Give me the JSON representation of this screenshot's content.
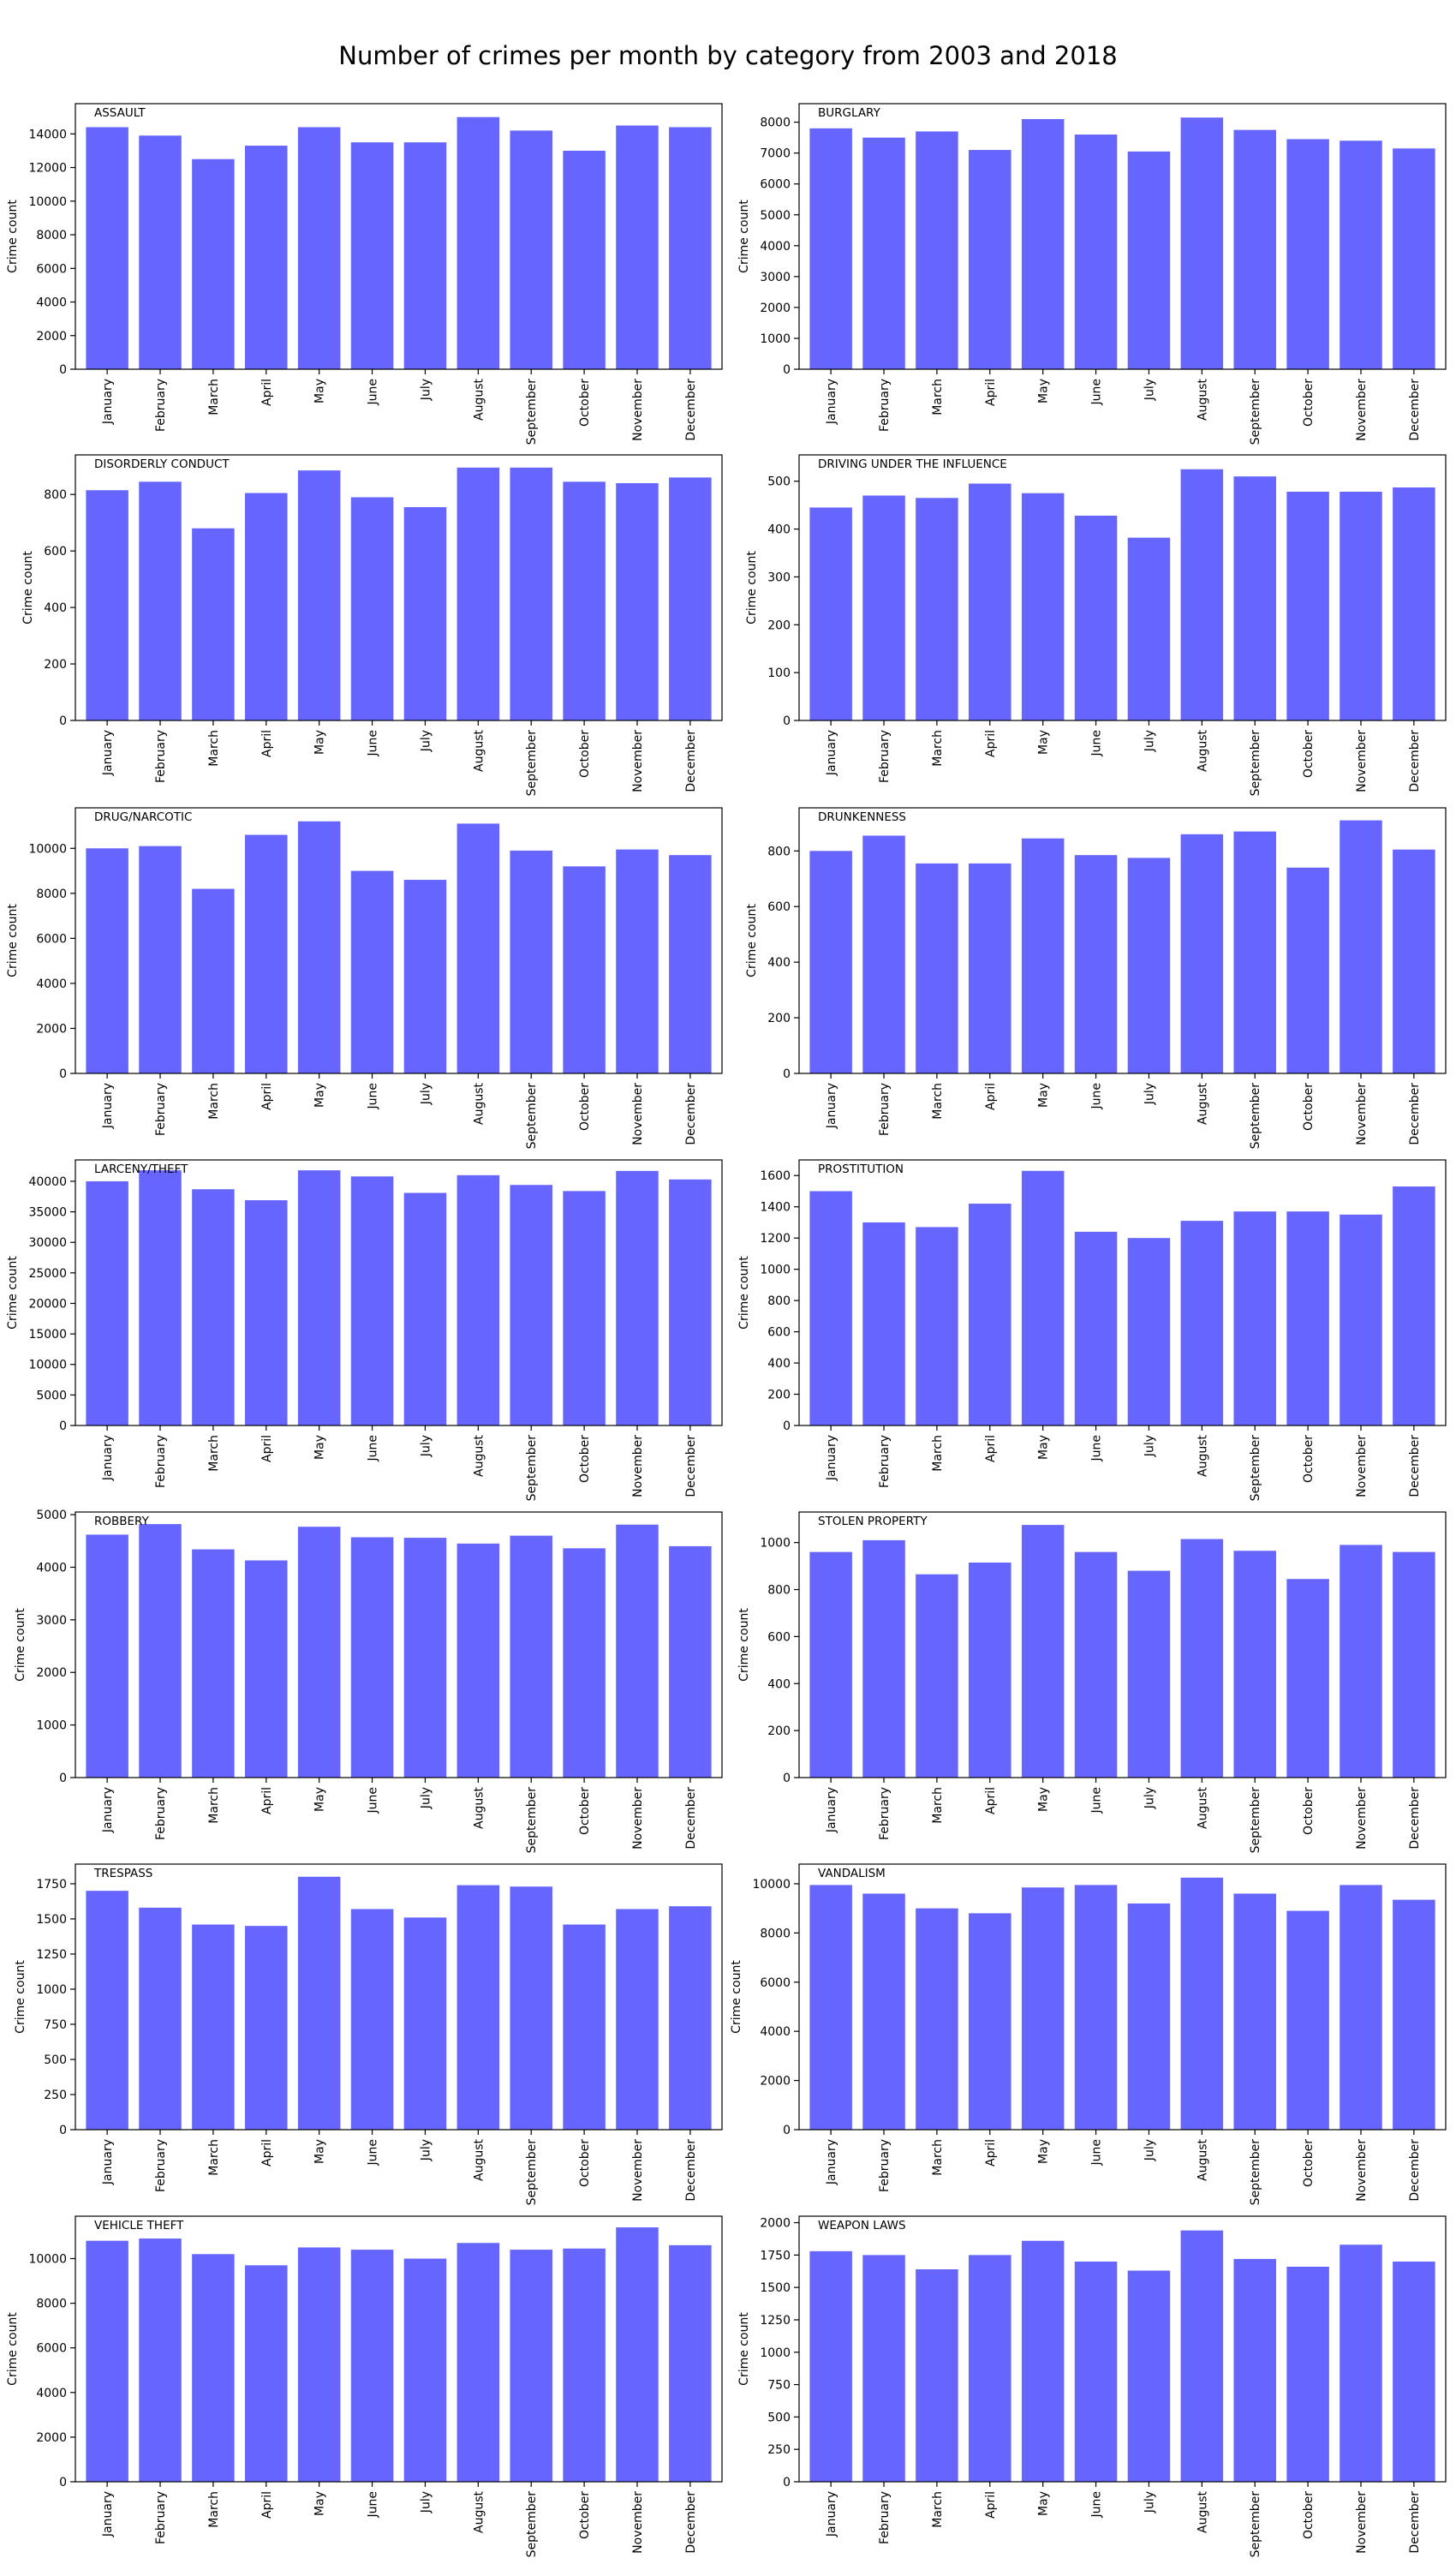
{
  "figure": {
    "title": "Number of crimes per month by category from 2003 and 2018",
    "bar_color": "#6666ff",
    "ylabel": "Crime count"
  },
  "chart_data": [
    {
      "type": "bar",
      "title": "ASSAULT",
      "ylabel": "Crime count",
      "ylim": [
        0,
        15800
      ],
      "yticks": [
        0,
        2000,
        4000,
        6000,
        8000,
        10000,
        12000,
        14000
      ],
      "categories": [
        "January",
        "February",
        "March",
        "April",
        "May",
        "June",
        "July",
        "August",
        "September",
        "October",
        "November",
        "December"
      ],
      "values": [
        14400,
        13900,
        12500,
        13300,
        14400,
        13500,
        13500,
        15000,
        14200,
        13000,
        14500,
        14400
      ]
    },
    {
      "type": "bar",
      "title": "BURGLARY",
      "ylabel": "Crime count",
      "ylim": [
        0,
        8600
      ],
      "yticks": [
        0,
        1000,
        2000,
        3000,
        4000,
        5000,
        6000,
        7000,
        8000
      ],
      "categories": [
        "January",
        "February",
        "March",
        "April",
        "May",
        "June",
        "July",
        "August",
        "September",
        "October",
        "November",
        "December"
      ],
      "values": [
        7800,
        7500,
        7700,
        7100,
        8100,
        7600,
        7050,
        8150,
        7750,
        7450,
        7400,
        7150
      ]
    },
    {
      "type": "bar",
      "title": "DISORDERLY CONDUCT",
      "ylabel": "Crime count",
      "ylim": [
        0,
        940
      ],
      "yticks": [
        0,
        200,
        400,
        600,
        800
      ],
      "categories": [
        "January",
        "February",
        "March",
        "April",
        "May",
        "June",
        "July",
        "August",
        "September",
        "October",
        "November",
        "December"
      ],
      "values": [
        815,
        845,
        680,
        805,
        885,
        790,
        755,
        895,
        895,
        845,
        840,
        860
      ]
    },
    {
      "type": "bar",
      "title": "DRIVING UNDER THE INFLUENCE",
      "ylabel": "Crime count",
      "ylim": [
        0,
        555
      ],
      "yticks": [
        0,
        100,
        200,
        300,
        400,
        500
      ],
      "categories": [
        "January",
        "February",
        "March",
        "April",
        "May",
        "June",
        "July",
        "August",
        "September",
        "October",
        "November",
        "December"
      ],
      "values": [
        445,
        470,
        465,
        495,
        475,
        428,
        382,
        525,
        510,
        478,
        478,
        487
      ]
    },
    {
      "type": "bar",
      "title": "DRUG/NARCOTIC",
      "ylabel": "Crime count",
      "ylim": [
        0,
        11800
      ],
      "yticks": [
        0,
        2000,
        4000,
        6000,
        8000,
        10000
      ],
      "categories": [
        "January",
        "February",
        "March",
        "April",
        "May",
        "June",
        "July",
        "August",
        "September",
        "October",
        "November",
        "December"
      ],
      "values": [
        10000,
        10100,
        8200,
        10600,
        11200,
        9000,
        8600,
        11100,
        9900,
        9200,
        9950,
        9700
      ]
    },
    {
      "type": "bar",
      "title": "DRUNKENNESS",
      "ylabel": "Crime count",
      "ylim": [
        0,
        955
      ],
      "yticks": [
        0,
        200,
        400,
        600,
        800
      ],
      "categories": [
        "January",
        "February",
        "March",
        "April",
        "May",
        "June",
        "July",
        "August",
        "September",
        "October",
        "November",
        "December"
      ],
      "values": [
        800,
        855,
        755,
        755,
        845,
        785,
        775,
        860,
        870,
        740,
        910,
        805
      ]
    },
    {
      "type": "bar",
      "title": "LARCENY/THEFT",
      "ylabel": "Crime count",
      "ylim": [
        0,
        43500
      ],
      "yticks": [
        0,
        5000,
        10000,
        15000,
        20000,
        25000,
        30000,
        35000,
        40000
      ],
      "categories": [
        "January",
        "February",
        "March",
        "April",
        "May",
        "June",
        "July",
        "August",
        "September",
        "October",
        "November",
        "December"
      ],
      "values": [
        40000,
        41800,
        38700,
        36900,
        41800,
        40800,
        38100,
        41000,
        39400,
        38400,
        41700,
        40300
      ]
    },
    {
      "type": "bar",
      "title": "PROSTITUTION",
      "ylabel": "Crime count",
      "ylim": [
        0,
        1700
      ],
      "yticks": [
        0,
        200,
        400,
        600,
        800,
        1000,
        1200,
        1400,
        1600
      ],
      "categories": [
        "January",
        "February",
        "March",
        "April",
        "May",
        "June",
        "July",
        "August",
        "September",
        "October",
        "November",
        "December"
      ],
      "values": [
        1500,
        1300,
        1270,
        1420,
        1630,
        1240,
        1200,
        1310,
        1370,
        1370,
        1350,
        1530
      ]
    },
    {
      "type": "bar",
      "title": "ROBBERY",
      "ylabel": "Crime count",
      "ylim": [
        0,
        5050
      ],
      "yticks": [
        0,
        1000,
        2000,
        3000,
        4000,
        5000
      ],
      "categories": [
        "January",
        "February",
        "March",
        "April",
        "May",
        "June",
        "July",
        "August",
        "September",
        "October",
        "November",
        "December"
      ],
      "values": [
        4620,
        4820,
        4340,
        4130,
        4770,
        4570,
        4560,
        4450,
        4600,
        4360,
        4810,
        4400
      ]
    },
    {
      "type": "bar",
      "title": "STOLEN PROPERTY",
      "ylabel": "Crime count",
      "ylim": [
        0,
        1130
      ],
      "yticks": [
        0,
        200,
        400,
        600,
        800,
        1000
      ],
      "categories": [
        "January",
        "February",
        "March",
        "April",
        "May",
        "June",
        "July",
        "August",
        "September",
        "October",
        "November",
        "December"
      ],
      "values": [
        960,
        1010,
        865,
        915,
        1075,
        960,
        880,
        1015,
        965,
        845,
        990,
        960
      ]
    },
    {
      "type": "bar",
      "title": "TRESPASS",
      "ylabel": "Crime count",
      "ylim": [
        0,
        1890
      ],
      "yticks": [
        0,
        250,
        500,
        750,
        1000,
        1250,
        1500,
        1750
      ],
      "categories": [
        "January",
        "February",
        "March",
        "April",
        "May",
        "June",
        "July",
        "August",
        "September",
        "October",
        "November",
        "December"
      ],
      "values": [
        1700,
        1580,
        1460,
        1450,
        1800,
        1570,
        1510,
        1740,
        1730,
        1460,
        1570,
        1590
      ]
    },
    {
      "type": "bar",
      "title": "VANDALISM",
      "ylabel": "Crime count",
      "ylim": [
        0,
        10800
      ],
      "yticks": [
        0,
        2000,
        4000,
        6000,
        8000,
        10000
      ],
      "categories": [
        "January",
        "February",
        "March",
        "April",
        "May",
        "June",
        "July",
        "August",
        "September",
        "October",
        "November",
        "December"
      ],
      "values": [
        9950,
        9600,
        9000,
        8800,
        9850,
        9950,
        9200,
        10250,
        9600,
        8900,
        9950,
        9350
      ]
    },
    {
      "type": "bar",
      "title": "VEHICLE THEFT",
      "ylabel": "Crime count",
      "ylim": [
        0,
        11900
      ],
      "yticks": [
        0,
        2000,
        4000,
        6000,
        8000,
        10000
      ],
      "categories": [
        "January",
        "February",
        "March",
        "April",
        "May",
        "June",
        "July",
        "August",
        "September",
        "October",
        "November",
        "December"
      ],
      "values": [
        10800,
        10900,
        10200,
        9700,
        10500,
        10400,
        10000,
        10700,
        10400,
        10450,
        11400,
        10600
      ]
    },
    {
      "type": "bar",
      "title": "WEAPON LAWS",
      "ylabel": "Crime count",
      "ylim": [
        0,
        2050
      ],
      "yticks": [
        0,
        250,
        500,
        750,
        1000,
        1250,
        1500,
        1750,
        2000
      ],
      "categories": [
        "January",
        "February",
        "March",
        "April",
        "May",
        "June",
        "July",
        "August",
        "September",
        "October",
        "November",
        "December"
      ],
      "values": [
        1780,
        1750,
        1640,
        1750,
        1860,
        1700,
        1630,
        1940,
        1720,
        1660,
        1830,
        1700
      ]
    }
  ]
}
